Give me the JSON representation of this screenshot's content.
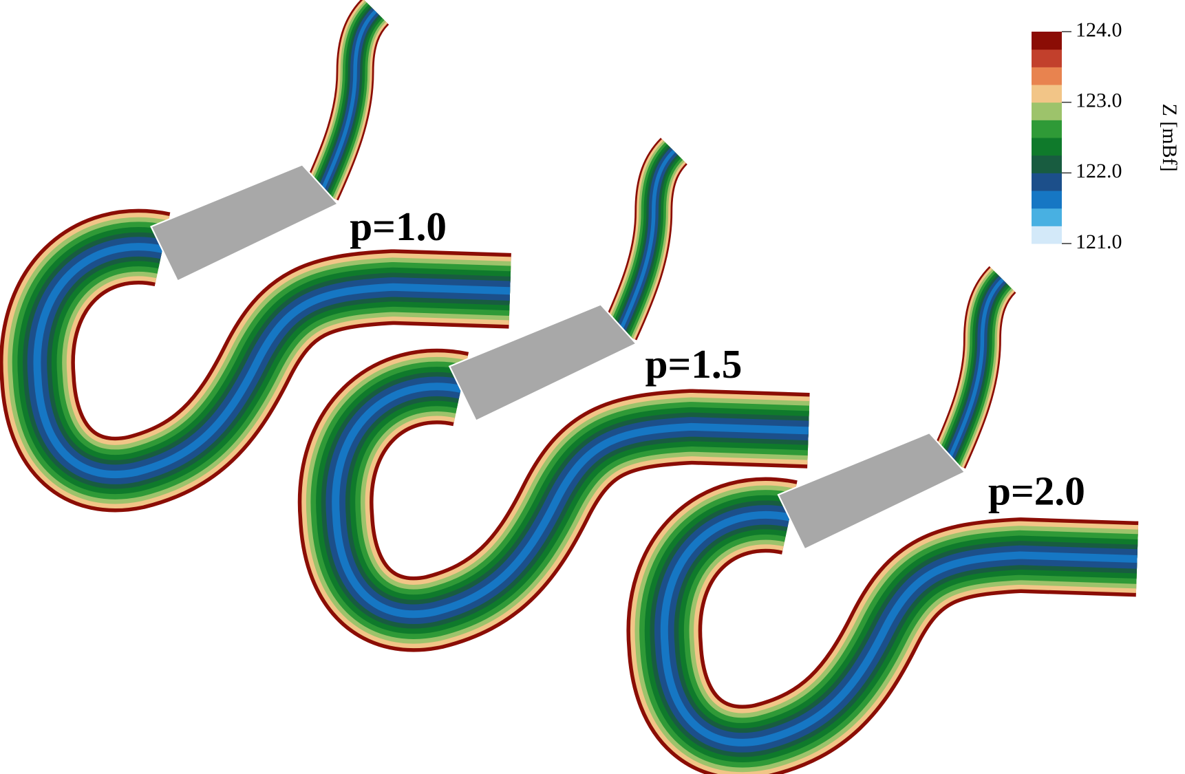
{
  "panels": [
    {
      "label": "p=1.0"
    },
    {
      "label": "p=1.5"
    },
    {
      "label": "p=2.0"
    }
  ],
  "colorbar": {
    "label": "Z [mBf]",
    "lim": [
      121,
      124
    ],
    "ticks": [
      {
        "value": 124,
        "label": "124.0"
      },
      {
        "value": 123,
        "label": "123.0"
      },
      {
        "value": 122,
        "label": "122.0"
      },
      {
        "value": 121,
        "label": "121.0"
      }
    ],
    "colors": [
      "#d3e9f9",
      "#48b0e2",
      "#1677c4",
      "#1c4f8a",
      "#185c40",
      "#0f7a2b",
      "#2f9a37",
      "#9dc36b",
      "#f2c587",
      "#e8834f",
      "#c2402c",
      "#8b0d05"
    ]
  }
}
